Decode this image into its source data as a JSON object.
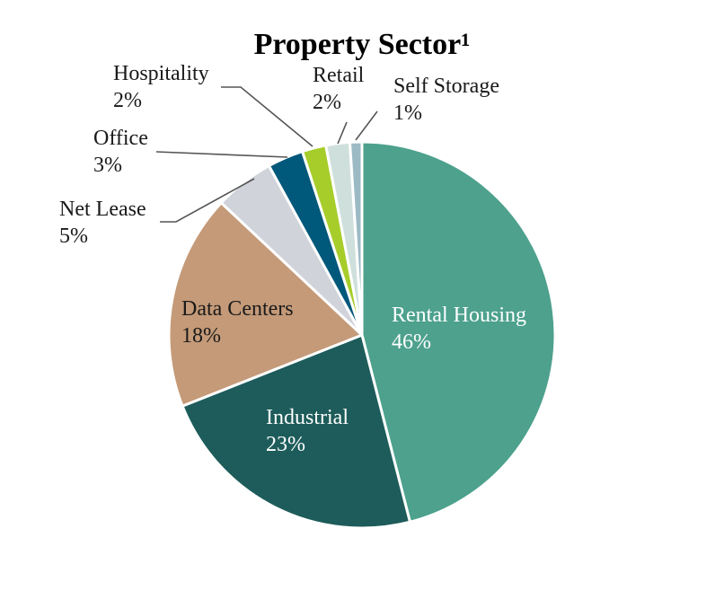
{
  "chart_data": {
    "type": "pie",
    "title": "Property Sector¹",
    "slices": [
      {
        "label": "Rental Housing",
        "value": 46,
        "display": "46%",
        "color": "#4da18d",
        "label_color": "#ffffff",
        "label_placement": "inside"
      },
      {
        "label": "Industrial",
        "value": 23,
        "display": "23%",
        "color": "#1d5c5a",
        "label_color": "#ffffff",
        "label_placement": "inside"
      },
      {
        "label": "Data Centers",
        "value": 18,
        "display": "18%",
        "color": "#c49a78",
        "label_color": "#1a1a1a",
        "label_placement": "inside"
      },
      {
        "label": "Net Lease",
        "value": 5,
        "display": "5%",
        "color": "#d0d3da",
        "label_color": "#1a1a1a",
        "label_placement": "outside"
      },
      {
        "label": "Office",
        "value": 3,
        "display": "3%",
        "color": "#00587a",
        "label_color": "#1a1a1a",
        "label_placement": "outside"
      },
      {
        "label": "Hospitality",
        "value": 2,
        "display": "2%",
        "color": "#a6cd2a",
        "label_color": "#1a1a1a",
        "label_placement": "outside"
      },
      {
        "label": "Retail",
        "value": 2,
        "display": "2%",
        "color": "#cfe0dc",
        "label_color": "#1a1a1a",
        "label_placement": "outside"
      },
      {
        "label": "Self Storage",
        "value": 1,
        "display": "1%",
        "color": "#9cbac4",
        "label_color": "#1a1a1a",
        "label_placement": "outside"
      }
    ],
    "start_angle": "12 o'clock",
    "direction": "clockwise",
    "legend": "none"
  }
}
